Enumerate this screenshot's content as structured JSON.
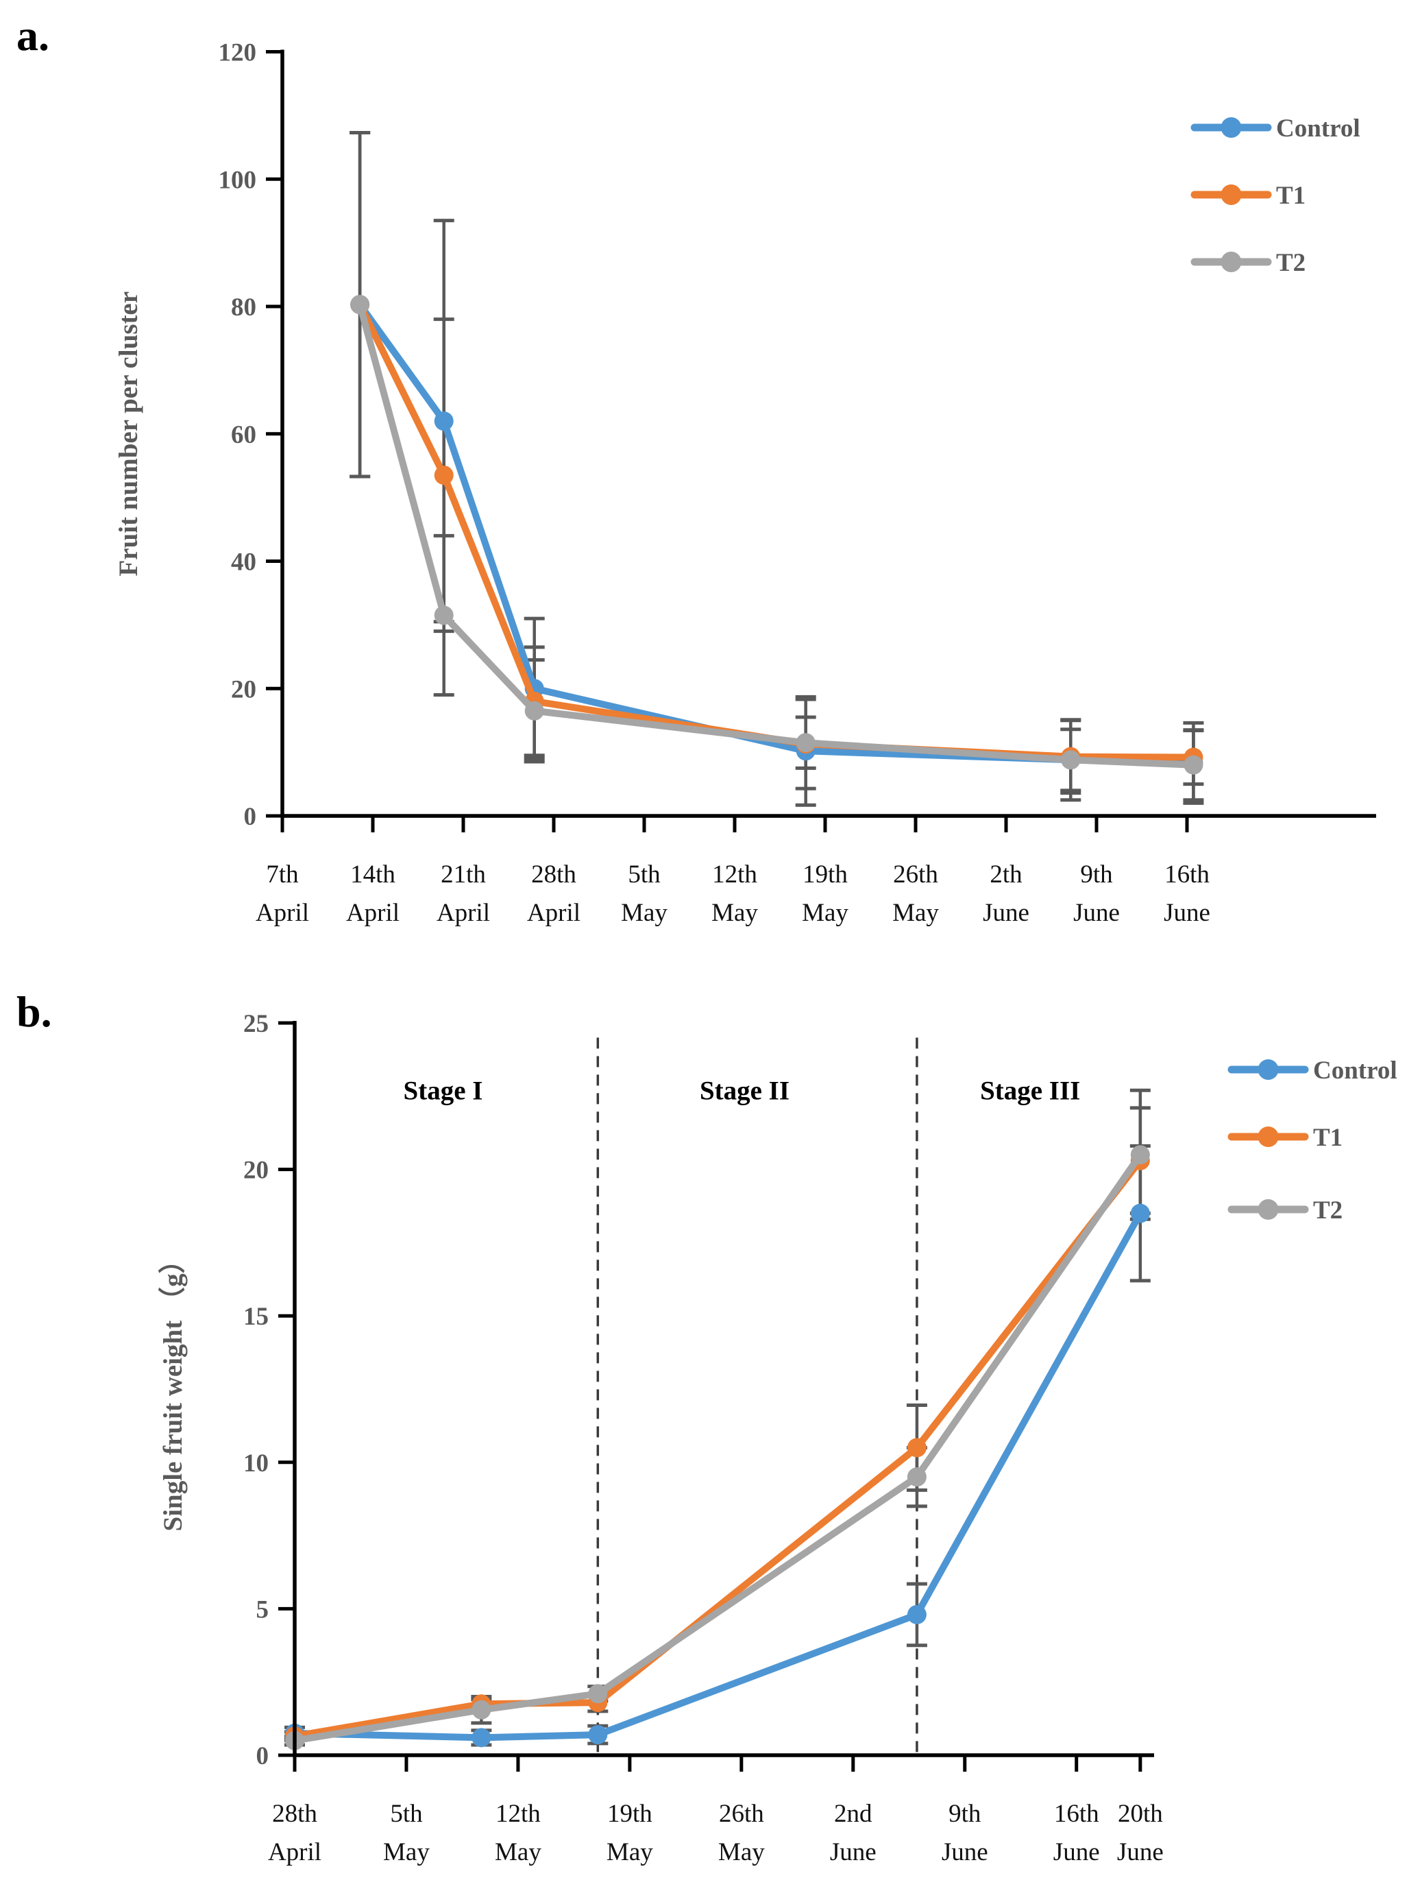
{
  "page": {
    "background": "#ffffff",
    "panel_letters": {
      "a": "a.",
      "b": "b."
    }
  },
  "colors": {
    "control": "#4E96D3",
    "t1": "#ED7D31",
    "t2": "#A5A5A5",
    "error_bar": "#595959",
    "axis": "#000000",
    "dashed_line": "#3a3a3a"
  },
  "chart_data": [
    {
      "panel": "a",
      "type": "line",
      "title": "",
      "xlabel": "",
      "ylabel": "Fruit number per cluster",
      "ylim": [
        0,
        120
      ],
      "yticks": [
        0,
        20,
        40,
        60,
        80,
        100,
        120
      ],
      "grid": "off",
      "legend_position": "top-right",
      "x_axis_unit": "days since 7th April",
      "tick_days": [
        0,
        7,
        14,
        21,
        28,
        35,
        42,
        49,
        56,
        63,
        70
      ],
      "tick_labels": [
        [
          "7th",
          "April"
        ],
        [
          "14th",
          "April"
        ],
        [
          "21th",
          "April"
        ],
        [
          "28th",
          "April"
        ],
        [
          "5th",
          "May"
        ],
        [
          "12th",
          "May"
        ],
        [
          "19th",
          "May"
        ],
        [
          "26th",
          "May"
        ],
        [
          "2th",
          "June"
        ],
        [
          "9th",
          "June"
        ],
        [
          "16th",
          "June"
        ]
      ],
      "series": [
        {
          "name": "Control",
          "color_key": "control",
          "x_days": [
            6,
            12.5,
            19.5,
            40.5,
            61,
            70.5
          ],
          "values": [
            80.3,
            62.0,
            20.0,
            10.2,
            8.8,
            8.3
          ],
          "errors": [
            27.0,
            31.5,
            11.0,
            8.5,
            6.3,
            6.3
          ]
        },
        {
          "name": "T1",
          "color_key": "t1",
          "x_days": [
            6,
            12.5,
            19.5,
            40.5,
            61,
            70.5
          ],
          "values": [
            80.3,
            53.5,
            18.0,
            11.3,
            9.3,
            9.2
          ],
          "errors": [
            27.0,
            24.5,
            8.5,
            7.0,
            5.7,
            4.2
          ]
        },
        {
          "name": "T2",
          "color_key": "t2",
          "x_days": [
            6,
            12.5,
            19.5,
            40.5,
            61,
            70.5
          ],
          "values": [
            80.3,
            31.5,
            16.5,
            11.5,
            8.8,
            8.0
          ],
          "errors": [
            27.0,
            12.5,
            8.0,
            4.0,
            4.8,
            5.5
          ]
        }
      ],
      "legend_items": [
        "Control",
        "T1",
        "T2"
      ]
    },
    {
      "panel": "b",
      "type": "line",
      "title": "",
      "xlabel": "",
      "ylabel": "Single fruit weight （g）",
      "ylim": [
        0,
        25
      ],
      "yticks": [
        0,
        5,
        10,
        15,
        20,
        25
      ],
      "grid": "off",
      "legend_position": "top-right",
      "x_axis_unit": "days since 28th April",
      "tick_days": [
        0,
        7,
        14,
        21,
        28,
        35,
        42,
        49,
        53
      ],
      "tick_labels": [
        [
          "28th",
          "April"
        ],
        [
          "5th",
          "May"
        ],
        [
          "12th",
          "May"
        ],
        [
          "19th",
          "May"
        ],
        [
          "26th",
          "May"
        ],
        [
          "2nd",
          "June"
        ],
        [
          "9th",
          "June"
        ],
        [
          "16th",
          "June"
        ],
        [
          "20th",
          "June"
        ]
      ],
      "stages": [
        {
          "label": "Stage I",
          "day": 9.3
        },
        {
          "label": "Stage II",
          "day": 28.2
        },
        {
          "label": "Stage III",
          "day": 46.1
        }
      ],
      "stage_label_value": 22.7,
      "dashed_line_days": [
        19,
        39
      ],
      "dashed_line_top_value": 24.5,
      "series": [
        {
          "name": "Control",
          "color_key": "control",
          "x_days": [
            0,
            11.7,
            19,
            39,
            53
          ],
          "values": [
            0.75,
            0.6,
            0.7,
            4.8,
            18.5
          ],
          "errors": [
            0.2,
            0.25,
            0.3,
            1.05,
            2.3
          ]
        },
        {
          "name": "T1",
          "color_key": "t1",
          "x_days": [
            0,
            11.7,
            19,
            39,
            53
          ],
          "values": [
            0.65,
            1.75,
            1.8,
            10.5,
            20.3
          ],
          "errors": [
            0.15,
            0.15,
            0.3,
            1.45,
            1.8
          ]
        },
        {
          "name": "T2",
          "color_key": "t2",
          "x_days": [
            0,
            11.7,
            19,
            39,
            53
          ],
          "values": [
            0.5,
            1.55,
            2.1,
            9.5,
            20.5
          ],
          "errors": [
            0.15,
            0.45,
            0.25,
            1.0,
            2.2
          ]
        }
      ],
      "legend_items": [
        "Control",
        "T1",
        "T2"
      ]
    }
  ]
}
